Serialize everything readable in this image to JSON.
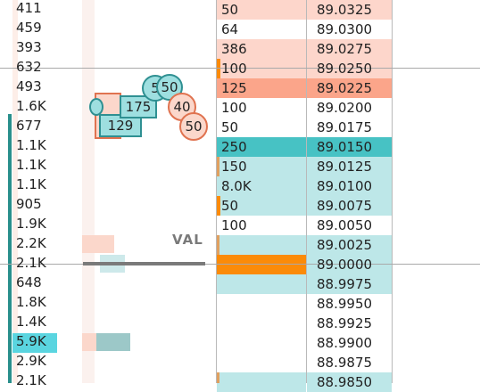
{
  "colors": {
    "bid_light": "#fdd6cb",
    "bid_dark": "#fba58a",
    "ask_light": "#bde7e8",
    "ask_dark": "#47c2c4",
    "hilite_orange": "#fb8b08",
    "volume_cyan": "#5ad5e0",
    "volume_bar_teal": "#2a8f8c",
    "val_line": "#7a7a7a"
  },
  "volume_column": {
    "values": [
      "411",
      "459",
      "393",
      "632",
      "493",
      "1.6K",
      "677",
      "1.1K",
      "1.1K",
      "1.1K",
      "905",
      "1.9K",
      "2.2K",
      "2.1K",
      "648",
      "1.8K",
      "1.4K",
      "5.9K",
      "2.9K",
      "2.1K"
    ]
  },
  "bid_column": {
    "values": [
      "50",
      "",
      "64",
      "386",
      "100",
      "",
      "",
      "125",
      "100",
      "50",
      "250",
      "",
      "150",
      "8.0K",
      "50",
      "",
      "",
      "",
      "",
      "100"
    ]
  },
  "price_column": {
    "values": [
      "89.0325",
      "89.0300",
      "89.0275",
      "89.0250",
      "89.0225",
      "89.0200",
      "89.0175",
      "89.0150",
      "89.0125",
      "89.0100",
      "89.0075",
      "89.0050",
      "89.0025",
      "89.0000",
      "88.9975",
      "88.9950",
      "88.9925",
      "88.9900",
      "88.9875",
      "88.9850"
    ]
  },
  "chart": {
    "val_label": "VAL",
    "bubbles": {
      "b1": "5",
      "b2": "50",
      "b3": "175",
      "b4": "40",
      "b5": "129",
      "b6": "50"
    }
  }
}
